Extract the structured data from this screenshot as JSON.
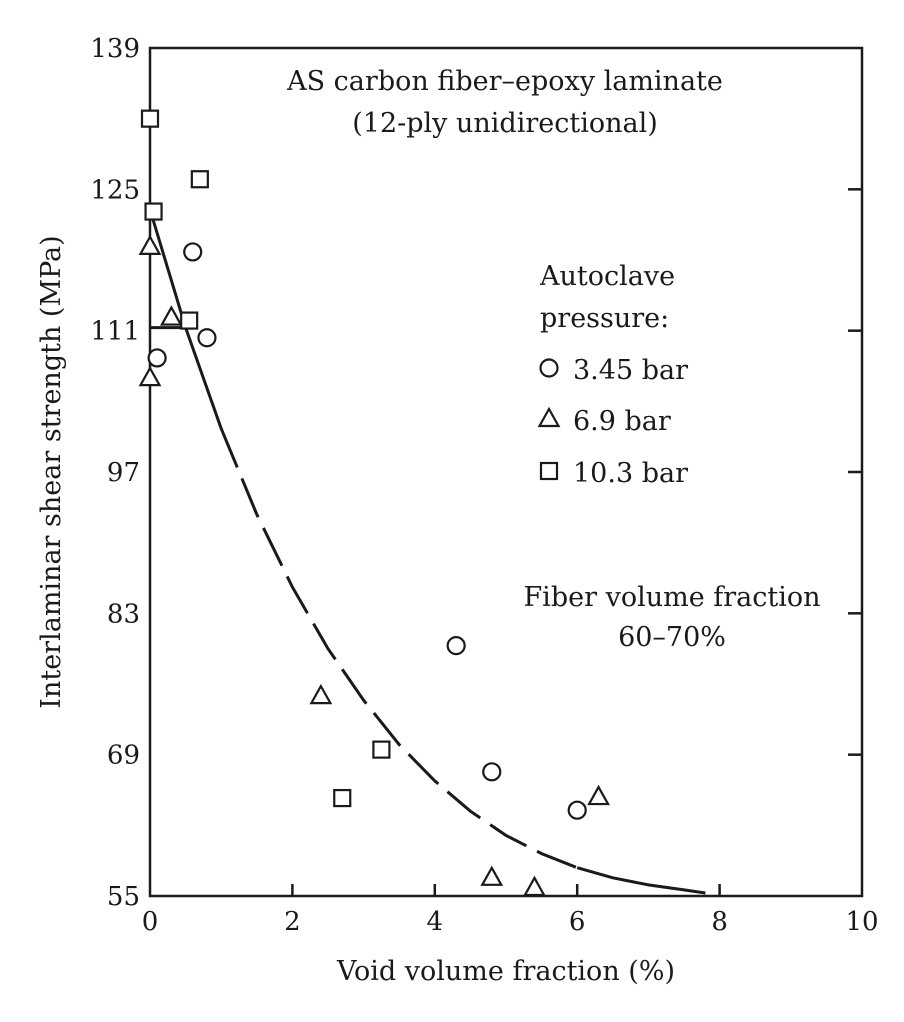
{
  "chart_data": {
    "type": "scatter",
    "xlabel": "Void volume fraction (%)",
    "ylabel": "Interlaminar shear strength (MPa)",
    "xlim": [
      0,
      10
    ],
    "ylim": [
      55,
      139
    ],
    "x_ticks": [
      0,
      2,
      4,
      6,
      8,
      10
    ],
    "y_ticks": [
      55,
      69,
      83,
      97,
      111,
      125,
      139
    ],
    "grid": false,
    "annotations": {
      "title_line1": "AS carbon fiber–epoxy laminate",
      "title_line2": "(12-ply unidirectional)",
      "fiber_line1": "Fiber volume fraction",
      "fiber_line2": "60–70%"
    },
    "legend": {
      "title_line1": "Autoclave",
      "title_line2": "pressure:",
      "placement": "right"
    },
    "series": [
      {
        "name": "3.45 bar",
        "marker": "circle",
        "points": [
          [
            0.1,
            108.3
          ],
          [
            0.6,
            118.8
          ],
          [
            0.8,
            110.3
          ],
          [
            4.3,
            79.8
          ],
          [
            4.8,
            67.3
          ],
          [
            6.0,
            63.5
          ]
        ]
      },
      {
        "name": "6.9 bar",
        "marker": "triangle",
        "points": [
          [
            0.0,
            119.3
          ],
          [
            0.3,
            112.3
          ],
          [
            0.0,
            106.3
          ],
          [
            2.4,
            74.8
          ],
          [
            4.8,
            56.8
          ],
          [
            5.4,
            55.8
          ],
          [
            6.3,
            64.8
          ]
        ]
      },
      {
        "name": "10.3 bar",
        "marker": "square",
        "points": [
          [
            0.0,
            132.0
          ],
          [
            0.7,
            126.0
          ],
          [
            0.05,
            122.8
          ],
          [
            0.55,
            112.0
          ],
          [
            2.7,
            64.7
          ],
          [
            3.25,
            69.5
          ]
        ]
      }
    ],
    "curve": {
      "style": "solid-then-dashed-then-solid",
      "points": [
        [
          0.0,
          123.0
        ],
        [
          0.5,
          111.3
        ],
        [
          1.0,
          101.3
        ],
        [
          1.5,
          92.8
        ],
        [
          2.0,
          85.6
        ],
        [
          2.5,
          79.5
        ],
        [
          3.0,
          74.4
        ],
        [
          3.5,
          70.0
        ],
        [
          4.0,
          66.4
        ],
        [
          4.5,
          63.4
        ],
        [
          5.0,
          61.0
        ],
        [
          5.5,
          59.2
        ],
        [
          6.0,
          57.8
        ],
        [
          6.5,
          56.8
        ],
        [
          7.0,
          56.1
        ],
        [
          7.5,
          55.6
        ],
        [
          7.8,
          55.3
        ]
      ],
      "plateau": [
        [
          0.0,
          111.3
        ],
        [
          0.5,
          111.3
        ]
      ]
    }
  }
}
